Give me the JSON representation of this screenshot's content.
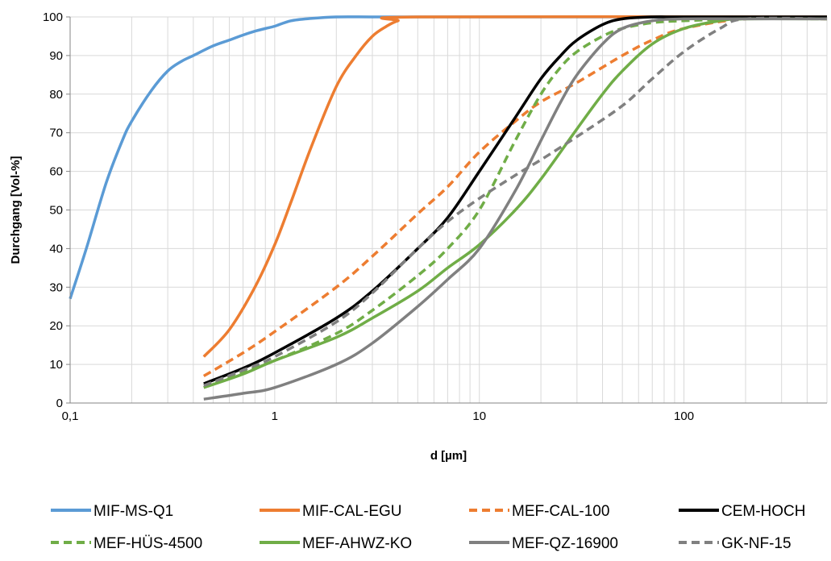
{
  "chart_data": {
    "type": "line",
    "xscale": "log",
    "xlim": [
      0.1,
      500
    ],
    "ylim": [
      0,
      100
    ],
    "grid": true,
    "legend_position": "bottom",
    "xlabel": "d [µm]",
    "ylabel": "Durchgang [Vol-%]",
    "x_ticks": [
      {
        "value": 0.1,
        "label": "0,1"
      },
      {
        "value": 1,
        "label": "1"
      },
      {
        "value": 10,
        "label": "10"
      },
      {
        "value": 100,
        "label": "100"
      }
    ],
    "y_ticks": [
      0,
      10,
      20,
      30,
      40,
      50,
      60,
      70,
      80,
      90,
      100
    ],
    "series": [
      {
        "name": "MIF-MS-Q1",
        "color": "#5b9bd5",
        "dash": "solid",
        "x": [
          0.1,
          0.12,
          0.15,
          0.18,
          0.2,
          0.25,
          0.3,
          0.35,
          0.4,
          0.5,
          0.6,
          0.7,
          0.8,
          0.9,
          1.0,
          1.2,
          1.5,
          2,
          3,
          5,
          500
        ],
        "y": [
          27,
          40,
          57,
          68,
          73,
          81,
          86,
          88.5,
          90,
          92.5,
          94,
          95.3,
          96.3,
          97,
          97.6,
          99,
          99.6,
          100,
          100,
          100,
          100
        ]
      },
      {
        "name": "MIF-CAL-EGU",
        "color": "#ed7d31",
        "dash": "solid",
        "x": [
          0.45,
          0.6,
          0.8,
          1.0,
          1.2,
          1.5,
          2.0,
          2.5,
          3.0,
          3.5,
          4.0,
          5.0,
          500
        ],
        "y": [
          12,
          19,
          30,
          41,
          52,
          66,
          82,
          90,
          95,
          97.5,
          99,
          100,
          100
        ]
      },
      {
        "name": "MEF-CAL-100",
        "color": "#ed7d31",
        "dash": "dashed",
        "x": [
          0.45,
          0.7,
          1,
          2,
          3,
          5,
          7,
          10,
          15,
          20,
          30,
          50,
          70,
          100,
          200,
          500
        ],
        "y": [
          7,
          13,
          18.5,
          30,
          38,
          49,
          56,
          65,
          73,
          78,
          83,
          90,
          94,
          97,
          99.5,
          99.5
        ]
      },
      {
        "name": "CEM-HOCH",
        "color": "#000000",
        "dash": "solid",
        "x": [
          0.45,
          0.7,
          1,
          2,
          3,
          5,
          7,
          10,
          15,
          20,
          25,
          30,
          40,
          50,
          70,
          100,
          500
        ],
        "y": [
          5,
          9,
          13,
          22,
          29,
          40,
          48,
          60,
          74,
          84,
          90,
          94,
          98,
          99.5,
          100,
          100,
          100
        ]
      },
      {
        "name": "MEF-HÜS-4500",
        "color": "#70ad47",
        "dash": "dashed",
        "x": [
          0.45,
          0.7,
          1,
          2,
          3,
          5,
          7,
          10,
          15,
          20,
          25,
          30,
          40,
          50,
          70,
          100,
          200,
          500
        ],
        "y": [
          4,
          8,
          11,
          18,
          24,
          33,
          40,
          50,
          68,
          80,
          87,
          91,
          95,
          97,
          98.5,
          99,
          99.5,
          99.5
        ]
      },
      {
        "name": "MEF-AHWZ-KO",
        "color": "#70ad47",
        "dash": "solid",
        "x": [
          0.45,
          0.7,
          1,
          2,
          3,
          5,
          7,
          10,
          15,
          20,
          30,
          40,
          50,
          70,
          100,
          150,
          200,
          500
        ],
        "y": [
          4,
          7.5,
          11,
          17,
          22,
          29,
          35,
          41,
          50,
          58,
          71,
          80,
          86,
          93,
          97,
          99,
          99.5,
          99.5
        ]
      },
      {
        "name": "MEF-QZ-16900",
        "color": "#808080",
        "dash": "solid",
        "x": [
          0.45,
          0.7,
          1,
          2,
          3,
          5,
          7,
          10,
          15,
          20,
          25,
          30,
          40,
          50,
          70,
          100,
          200,
          500
        ],
        "y": [
          1,
          2.5,
          4,
          10,
          15.5,
          25,
          32,
          40,
          55,
          68,
          78,
          85,
          93,
          97,
          99,
          99.5,
          99.5,
          99.5
        ]
      },
      {
        "name": "GK-NF-15",
        "color": "#808080",
        "dash": "dashed",
        "x": [
          0.45,
          0.7,
          1,
          2,
          3,
          5,
          7,
          10,
          15,
          20,
          30,
          50,
          70,
          100,
          150,
          200,
          500
        ],
        "y": [
          4.5,
          8.5,
          12,
          21,
          28.5,
          40,
          47,
          53,
          59,
          63,
          69,
          77,
          84,
          91,
          97,
          99.5,
          99.5
        ]
      }
    ]
  }
}
